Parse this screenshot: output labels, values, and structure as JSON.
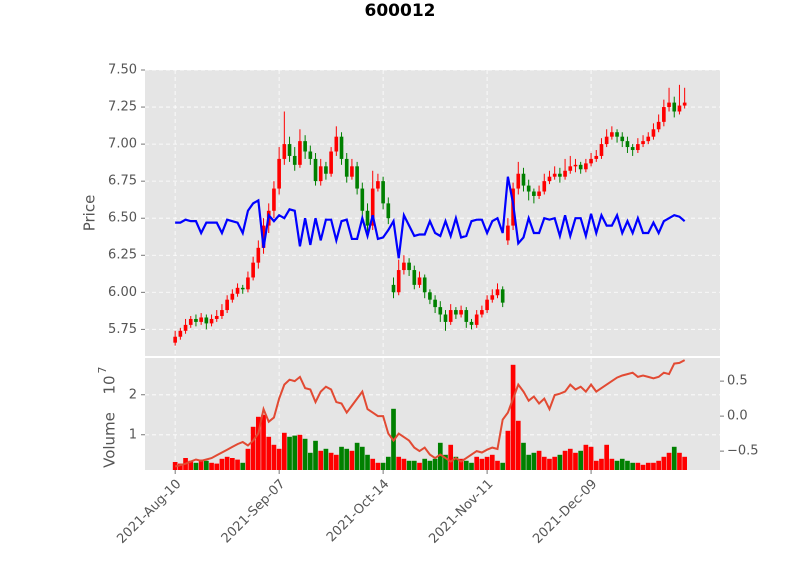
{
  "chart_data": {
    "type": "candlestick",
    "title": "600012",
    "ylabel": "Price",
    "volume_label": "Volume",
    "volume_offset_base": "10",
    "volume_offset_exp": "7",
    "up_color": "#ff0000",
    "down_color": "#008000",
    "grid": true,
    "xlim": [
      -5.8,
      104.8
    ],
    "xticks": [
      {
        "value": 0,
        "label": "2021-Aug-10"
      },
      {
        "value": 20,
        "label": "2021-Sep-07"
      },
      {
        "value": 40,
        "label": "2021-Oct-14"
      },
      {
        "value": 60,
        "label": "2021-Nov-11"
      },
      {
        "value": 80,
        "label": "2021-Dec-09"
      }
    ],
    "ylim": [
      5.57,
      7.5
    ],
    "yticks": [
      {
        "value": 5.75,
        "label": "5.75"
      },
      {
        "value": 6.0,
        "label": "6.00"
      },
      {
        "value": 6.25,
        "label": "6.25"
      },
      {
        "value": 6.5,
        "label": "6.50"
      },
      {
        "value": 6.75,
        "label": "6.75"
      },
      {
        "value": 7.0,
        "label": "7.00"
      },
      {
        "value": 7.25,
        "label": "7.25"
      },
      {
        "value": 7.5,
        "label": "7.50"
      }
    ],
    "volume_ylim": [
      0.12,
      2.92
    ],
    "volume_yticks": [
      1,
      2
    ],
    "y2lim": [
      -0.77,
      0.83
    ],
    "y2ticks": [
      {
        "value": -0.5,
        "label": "−0.5"
      },
      {
        "value": 0,
        "label": "0.0"
      },
      0.5
    ],
    "ohlc": [
      [
        5.66,
        5.74,
        5.64,
        5.7
      ],
      [
        5.7,
        5.76,
        5.68,
        5.74
      ],
      [
        5.74,
        5.82,
        5.72,
        5.78
      ],
      [
        5.78,
        5.84,
        5.76,
        5.82
      ],
      [
        5.82,
        5.85,
        5.77,
        5.8
      ],
      [
        5.8,
        5.86,
        5.78,
        5.83
      ],
      [
        5.83,
        5.85,
        5.75,
        5.79
      ],
      [
        5.79,
        5.85,
        5.77,
        5.82
      ],
      [
        5.82,
        5.88,
        5.8,
        5.84
      ],
      [
        5.84,
        5.92,
        5.82,
        5.88
      ],
      [
        5.88,
        5.98,
        5.86,
        5.95
      ],
      [
        5.95,
        6.02,
        5.93,
        5.99
      ],
      [
        5.99,
        6.06,
        5.97,
        6.03
      ],
      [
        6.03,
        6.05,
        5.99,
        6.02
      ],
      [
        6.02,
        6.14,
        6.0,
        6.1
      ],
      [
        6.1,
        6.24,
        6.08,
        6.2
      ],
      [
        6.2,
        6.35,
        6.16,
        6.3
      ],
      [
        6.3,
        6.5,
        6.26,
        6.45
      ],
      [
        6.45,
        6.6,
        6.4,
        6.55
      ],
      [
        6.55,
        6.75,
        6.5,
        6.7
      ],
      [
        6.7,
        6.98,
        6.66,
        6.9
      ],
      [
        6.9,
        7.22,
        6.86,
        7.0
      ],
      [
        7.0,
        7.05,
        6.88,
        6.92
      ],
      [
        6.92,
        6.98,
        6.82,
        6.86
      ],
      [
        6.86,
        7.1,
        6.84,
        7.02
      ],
      [
        7.02,
        7.06,
        6.9,
        6.95
      ],
      [
        6.95,
        6.99,
        6.86,
        6.9
      ],
      [
        6.9,
        6.94,
        6.72,
        6.75
      ],
      [
        6.75,
        6.9,
        6.72,
        6.85
      ],
      [
        6.85,
        6.88,
        6.76,
        6.8
      ],
      [
        6.8,
        6.98,
        6.78,
        6.95
      ],
      [
        6.95,
        7.12,
        6.92,
        7.05
      ],
      [
        7.05,
        7.08,
        6.86,
        6.9
      ],
      [
        6.9,
        6.94,
        6.74,
        6.78
      ],
      [
        6.78,
        6.9,
        6.76,
        6.85
      ],
      [
        6.85,
        6.88,
        6.66,
        6.7
      ],
      [
        6.7,
        6.74,
        6.5,
        6.55
      ],
      [
        6.55,
        6.6,
        6.4,
        6.45
      ],
      [
        6.45,
        6.82,
        6.42,
        6.7
      ],
      [
        6.7,
        6.8,
        6.68,
        6.75
      ],
      [
        6.75,
        6.78,
        6.56,
        6.6
      ],
      [
        6.6,
        6.64,
        6.46,
        6.5
      ],
      [
        6.05,
        6.1,
        5.96,
        6.0
      ],
      [
        6.0,
        6.22,
        5.98,
        6.15
      ],
      [
        6.15,
        6.25,
        6.12,
        6.2
      ],
      [
        6.2,
        6.23,
        6.11,
        6.15
      ],
      [
        6.15,
        6.18,
        6.02,
        6.05
      ],
      [
        6.05,
        6.14,
        6.03,
        6.1
      ],
      [
        6.1,
        6.12,
        5.96,
        6.0
      ],
      [
        6.0,
        6.02,
        5.92,
        5.95
      ],
      [
        5.95,
        5.98,
        5.86,
        5.9
      ],
      [
        5.9,
        5.94,
        5.8,
        5.85
      ],
      [
        5.85,
        5.88,
        5.74,
        5.8
      ],
      [
        5.8,
        5.92,
        5.78,
        5.88
      ],
      [
        5.88,
        5.9,
        5.82,
        5.85
      ],
      [
        5.85,
        5.91,
        5.83,
        5.88
      ],
      [
        5.88,
        5.9,
        5.76,
        5.8
      ],
      [
        5.8,
        5.82,
        5.75,
        5.78
      ],
      [
        5.78,
        5.88,
        5.76,
        5.85
      ],
      [
        5.85,
        5.91,
        5.83,
        5.88
      ],
      [
        5.88,
        5.98,
        5.86,
        5.95
      ],
      [
        5.95,
        6.02,
        5.93,
        5.98
      ],
      [
        5.98,
        6.06,
        5.96,
        6.02
      ],
      [
        6.02,
        6.04,
        5.9,
        5.93
      ],
      [
        6.35,
        6.5,
        6.32,
        6.45
      ],
      [
        6.45,
        6.74,
        6.42,
        6.7
      ],
      [
        6.7,
        6.88,
        6.66,
        6.8
      ],
      [
        6.8,
        6.84,
        6.68,
        6.72
      ],
      [
        6.72,
        6.76,
        6.62,
        6.68
      ],
      [
        6.68,
        6.7,
        6.6,
        6.65
      ],
      [
        6.65,
        6.72,
        6.63,
        6.68
      ],
      [
        6.68,
        6.8,
        6.66,
        6.75
      ],
      [
        6.75,
        6.82,
        6.73,
        6.78
      ],
      [
        6.78,
        6.85,
        6.76,
        6.8
      ],
      [
        6.8,
        6.84,
        6.74,
        6.78
      ],
      [
        6.78,
        6.9,
        6.76,
        6.82
      ],
      [
        6.82,
        6.92,
        6.8,
        6.85
      ],
      [
        6.85,
        6.9,
        6.81,
        6.86
      ],
      [
        6.86,
        6.88,
        6.8,
        6.83
      ],
      [
        6.83,
        6.9,
        6.81,
        6.87
      ],
      [
        6.87,
        6.94,
        6.85,
        6.9
      ],
      [
        6.9,
        6.96,
        6.88,
        6.92
      ],
      [
        6.92,
        7.04,
        6.9,
        7.0
      ],
      [
        7.0,
        7.1,
        6.98,
        7.05
      ],
      [
        7.05,
        7.12,
        7.03,
        7.08
      ],
      [
        7.08,
        7.1,
        7.01,
        7.05
      ],
      [
        7.05,
        7.08,
        6.98,
        7.02
      ],
      [
        7.02,
        7.05,
        6.94,
        6.98
      ],
      [
        6.98,
        7.0,
        6.92,
        6.96
      ],
      [
        6.96,
        7.04,
        6.94,
        7.0
      ],
      [
        7.0,
        7.06,
        6.98,
        7.02
      ],
      [
        7.02,
        7.08,
        7.0,
        7.05
      ],
      [
        7.05,
        7.14,
        7.03,
        7.1
      ],
      [
        7.1,
        7.2,
        7.08,
        7.15
      ],
      [
        7.15,
        7.3,
        7.12,
        7.25
      ],
      [
        7.25,
        7.38,
        7.22,
        7.28
      ],
      [
        7.28,
        7.32,
        7.18,
        7.22
      ],
      [
        7.22,
        7.4,
        7.2,
        7.26
      ],
      [
        7.26,
        7.38,
        7.24,
        7.28
      ]
    ],
    "volume": [
      0.32,
      0.28,
      0.42,
      0.35,
      0.3,
      0.38,
      0.35,
      0.3,
      0.28,
      0.4,
      0.45,
      0.42,
      0.38,
      0.3,
      0.65,
      1.2,
      1.45,
      1.5,
      0.95,
      0.75,
      0.65,
      1.05,
      0.95,
      0.98,
      1.0,
      0.9,
      0.55,
      0.85,
      0.6,
      0.65,
      0.55,
      0.5,
      0.7,
      0.65,
      0.6,
      0.8,
      0.7,
      0.5,
      0.4,
      0.3,
      0.3,
      0.45,
      1.65,
      0.45,
      0.4,
      0.35,
      0.35,
      0.3,
      0.4,
      0.35,
      0.4,
      0.8,
      0.5,
      0.75,
      0.45,
      0.4,
      0.35,
      0.3,
      0.45,
      0.4,
      0.45,
      0.5,
      0.35,
      0.3,
      1.1,
      2.75,
      1.35,
      0.8,
      0.5,
      0.55,
      0.6,
      0.45,
      0.4,
      0.45,
      0.5,
      0.6,
      0.65,
      0.55,
      0.6,
      0.75,
      0.7,
      0.35,
      0.4,
      0.75,
      0.4,
      0.35,
      0.4,
      0.35,
      0.3,
      0.3,
      0.25,
      0.3,
      0.3,
      0.35,
      0.45,
      0.55,
      0.7,
      0.55,
      0.45
    ],
    "series": [
      {
        "color": "#0000ff",
        "axis": "y",
        "values": [
          6.47,
          6.47,
          6.49,
          6.48,
          6.48,
          6.4,
          6.47,
          6.47,
          6.47,
          6.4,
          6.49,
          6.48,
          6.47,
          6.4,
          6.55,
          6.6,
          6.62,
          6.3,
          6.52,
          6.48,
          6.52,
          6.5,
          6.56,
          6.55,
          6.31,
          6.5,
          6.32,
          6.5,
          6.35,
          6.49,
          6.49,
          6.35,
          6.48,
          6.49,
          6.36,
          6.36,
          6.5,
          6.38,
          6.52,
          6.36,
          6.37,
          6.42,
          6.48,
          6.23,
          6.52,
          6.45,
          6.38,
          6.39,
          6.39,
          6.48,
          6.4,
          6.38,
          6.48,
          6.38,
          6.5,
          6.37,
          6.38,
          6.48,
          6.49,
          6.49,
          6.4,
          6.48,
          6.5,
          6.4,
          6.78,
          6.6,
          6.33,
          6.37,
          6.5,
          6.4,
          6.4,
          6.5,
          6.49,
          6.5,
          6.38,
          6.52,
          6.38,
          6.5,
          6.5,
          6.38,
          6.53,
          6.4,
          6.52,
          6.45,
          6.45,
          6.52,
          6.4,
          6.48,
          6.4,
          6.5,
          6.4,
          6.4,
          6.47,
          6.4,
          6.48,
          6.5,
          6.52,
          6.51,
          6.48
        ]
      },
      {
        "color": "#e24a33",
        "axis": "y2",
        "values": [
          -0.72,
          -0.7,
          -0.68,
          -0.65,
          -0.62,
          -0.64,
          -0.62,
          -0.6,
          -0.56,
          -0.52,
          -0.48,
          -0.44,
          -0.4,
          -0.37,
          -0.42,
          -0.35,
          -0.25,
          0.1,
          -0.08,
          -0.02,
          0.25,
          0.45,
          0.52,
          0.5,
          0.56,
          0.4,
          0.38,
          0.2,
          0.35,
          0.42,
          0.38,
          0.2,
          0.18,
          0.05,
          0.15,
          0.25,
          0.35,
          0.1,
          0.05,
          0.0,
          0.0,
          -0.25,
          -0.35,
          -0.25,
          -0.3,
          -0.35,
          -0.45,
          -0.5,
          -0.45,
          -0.55,
          -0.6,
          -0.55,
          -0.6,
          -0.65,
          -0.6,
          -0.65,
          -0.6,
          -0.55,
          -0.5,
          -0.52,
          -0.48,
          -0.45,
          -0.47,
          -0.05,
          0.05,
          0.25,
          0.45,
          0.35,
          0.22,
          0.28,
          0.18,
          0.25,
          0.1,
          0.3,
          0.32,
          0.35,
          0.45,
          0.38,
          0.42,
          0.35,
          0.45,
          0.35,
          0.4,
          0.45,
          0.5,
          0.55,
          0.58,
          0.6,
          0.62,
          0.56,
          0.58,
          0.56,
          0.54,
          0.56,
          0.62,
          0.6,
          0.75,
          0.76,
          0.8
        ]
      }
    ]
  }
}
